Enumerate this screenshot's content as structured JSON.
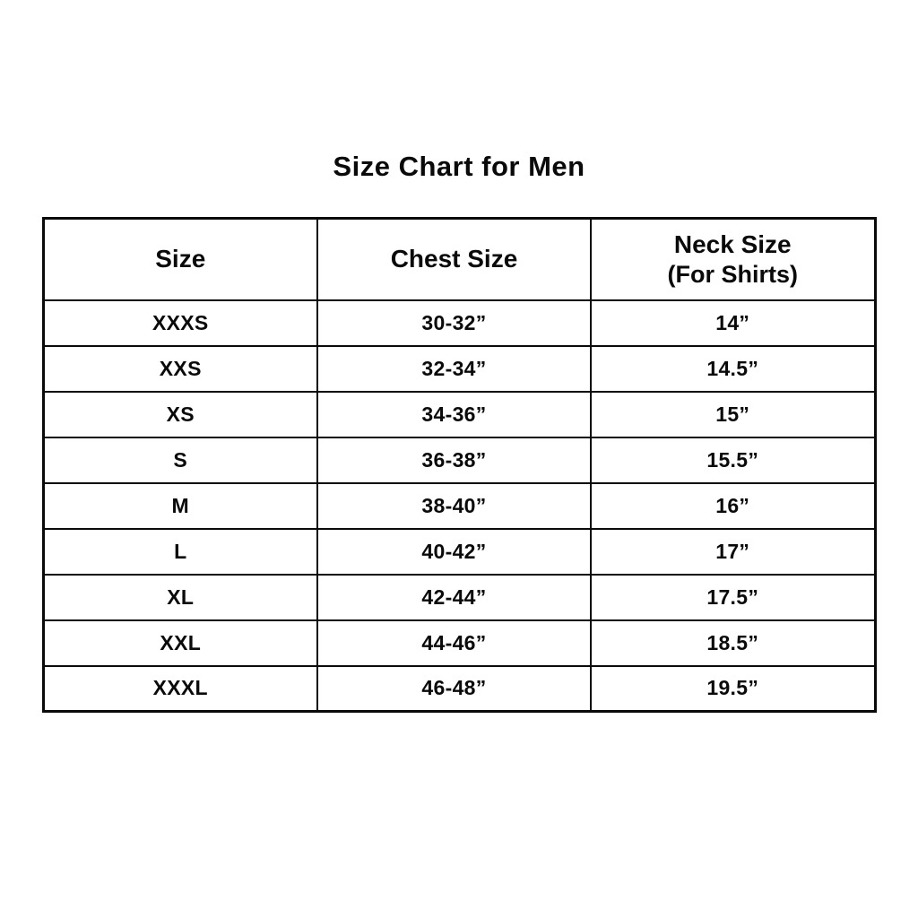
{
  "title": "Size Chart for Men",
  "chart_data": {
    "type": "table",
    "title": "Size Chart for Men",
    "columns": [
      "Size",
      "Chest Size",
      "Neck Size (For Shirts)"
    ],
    "rows": [
      [
        "XXXS",
        "30-32”",
        "14”"
      ],
      [
        "XXS",
        "32-34”",
        "14.5”"
      ],
      [
        "XS",
        "34-36”",
        "15”"
      ],
      [
        "S",
        "36-38”",
        "15.5”"
      ],
      [
        "M",
        "38-40”",
        "16”"
      ],
      [
        "L",
        "40-42”",
        "17”"
      ],
      [
        "XL",
        "42-44”",
        "17.5”"
      ],
      [
        "XXL",
        "44-46”",
        "18.5”"
      ],
      [
        "XXXL",
        "46-48”",
        "19.5”"
      ]
    ],
    "layout": {
      "text_color": "#0a0a0a",
      "background": "#ffffff",
      "border_color": "#0a0a0a",
      "alignment": "center"
    }
  },
  "table": {
    "headers": {
      "size": "Size",
      "chest": "Chest Size",
      "neck_line1": "Neck Size",
      "neck_line2": "(For Shirts)"
    }
  }
}
